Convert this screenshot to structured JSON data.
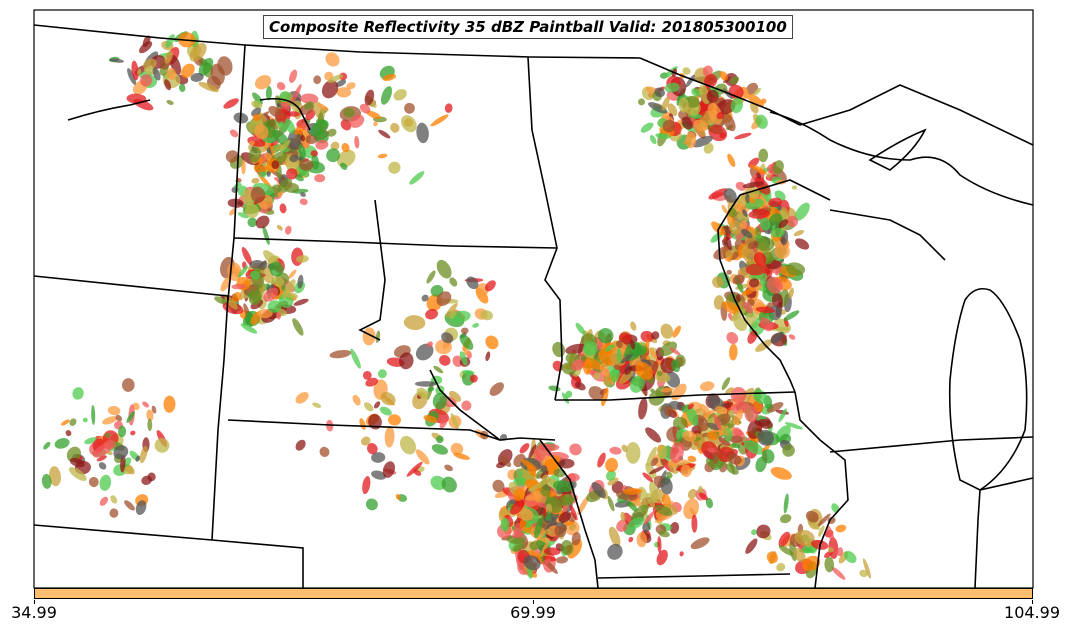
{
  "title": "Composite Reflectivity 35 dBZ Paintball Valid: 201805300100",
  "colorbar": {
    "color": "#fdbf6f",
    "ticks": [
      "34.99",
      "69.99",
      "104.99"
    ]
  },
  "palette": [
    "#e31a1c",
    "#ff7f00",
    "#33a02c",
    "#4ec94e",
    "#8c1a1a",
    "#a0522d",
    "#6b8e23",
    "#bdb54a",
    "#555555",
    "#fb9a3c",
    "#f15a5a",
    "#c8a03a"
  ]
}
